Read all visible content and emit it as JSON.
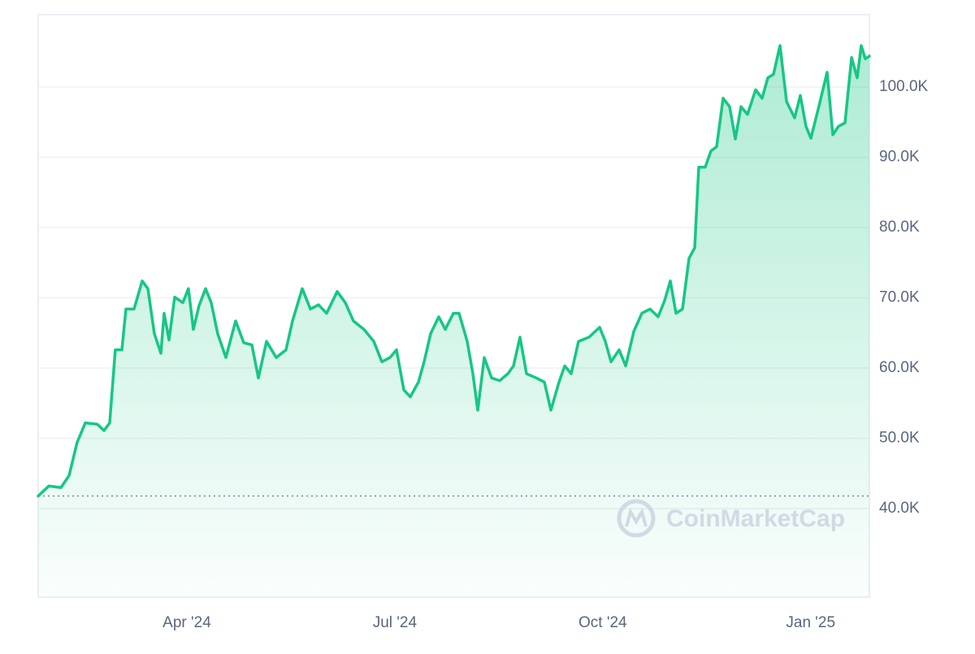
{
  "chart_data": {
    "type": "area-line",
    "watermark": "CoinMarketCap",
    "color": "#16c784",
    "grid": true,
    "xlim": [
      0.855,
      12.847
    ],
    "xticks": [
      {
        "value": 3,
        "label": "Apr '24"
      },
      {
        "value": 6,
        "label": "Jul '24"
      },
      {
        "value": 9,
        "label": "Oct '24"
      },
      {
        "value": 12,
        "label": "Jan '25"
      }
    ],
    "ylim": [
      27400,
      110300
    ],
    "yticks": [
      {
        "value": 40000,
        "label": "40.0K"
      },
      {
        "value": 50000,
        "label": "50.0K"
      },
      {
        "value": 60000,
        "label": "60.0K"
      },
      {
        "value": 70000,
        "label": "70.0K"
      },
      {
        "value": 80000,
        "label": "80.0K"
      },
      {
        "value": 90000,
        "label": "90.0K"
      },
      {
        "value": 100000,
        "label": "100.0K"
      }
    ],
    "x": [
      0.855,
      1.007,
      1.183,
      1.3,
      1.417,
      1.535,
      1.71,
      1.804,
      1.886,
      1.968,
      2.062,
      2.121,
      2.238,
      2.355,
      2.437,
      2.531,
      2.625,
      2.672,
      2.742,
      2.824,
      2.941,
      3.023,
      3.094,
      3.176,
      3.27,
      3.352,
      3.445,
      3.563,
      3.703,
      3.821,
      3.938,
      4.032,
      4.149,
      4.29,
      4.43,
      4.524,
      4.665,
      4.782,
      4.899,
      5.016,
      5.169,
      5.286,
      5.403,
      5.556,
      5.696,
      5.813,
      5.931,
      6.024,
      6.13,
      6.224,
      6.341,
      6.423,
      6.517,
      6.634,
      6.728,
      6.845,
      6.927,
      7.044,
      7.127,
      7.197,
      7.291,
      7.396,
      7.513,
      7.631,
      7.713,
      7.806,
      7.9,
      8.041,
      8.158,
      8.252,
      8.369,
      8.451,
      8.545,
      8.65,
      8.803,
      8.955,
      9.037,
      9.119,
      9.237,
      9.331,
      9.448,
      9.565,
      9.682,
      9.799,
      9.893,
      9.975,
      10.057,
      10.151,
      10.245,
      10.327,
      10.385,
      10.479,
      10.561,
      10.643,
      10.737,
      10.831,
      10.913,
      10.995,
      11.089,
      11.206,
      11.3,
      11.382,
      11.464,
      11.558,
      11.652,
      11.769,
      11.851,
      11.933,
      12.003,
      12.12,
      12.237,
      12.319,
      12.401,
      12.495,
      12.59,
      12.671,
      12.73,
      12.788,
      12.847
    ],
    "values": [
      41800,
      43200,
      43000,
      44700,
      49400,
      52200,
      52000,
      51100,
      52200,
      62600,
      62600,
      68400,
      68400,
      72400,
      71300,
      64900,
      62100,
      67800,
      64000,
      70100,
      69300,
      71300,
      65500,
      68900,
      71300,
      69300,
      64900,
      61500,
      66700,
      63600,
      63300,
      58600,
      63800,
      61500,
      62600,
      66700,
      71300,
      68400,
      69000,
      67800,
      70900,
      69300,
      66700,
      65500,
      63800,
      60900,
      61500,
      62600,
      56900,
      55900,
      58000,
      60900,
      64900,
      67300,
      65500,
      67800,
      67800,
      63800,
      59200,
      54000,
      61500,
      58600,
      58200,
      59200,
      60300,
      64400,
      59200,
      58600,
      58000,
      54000,
      58000,
      60300,
      59200,
      63800,
      64400,
      65800,
      63800,
      60900,
      62600,
      60300,
      65200,
      67800,
      68400,
      67300,
      69600,
      72400,
      67800,
      68400,
      75600,
      77100,
      88600,
      88600,
      90900,
      91500,
      98400,
      97200,
      92600,
      97200,
      96100,
      99600,
      98400,
      101300,
      101800,
      105900,
      97900,
      95600,
      98800,
      94400,
      92700,
      97300,
      102100,
      93200,
      94400,
      94900,
      104200,
      101300,
      105900,
      104000,
      104400
    ]
  }
}
